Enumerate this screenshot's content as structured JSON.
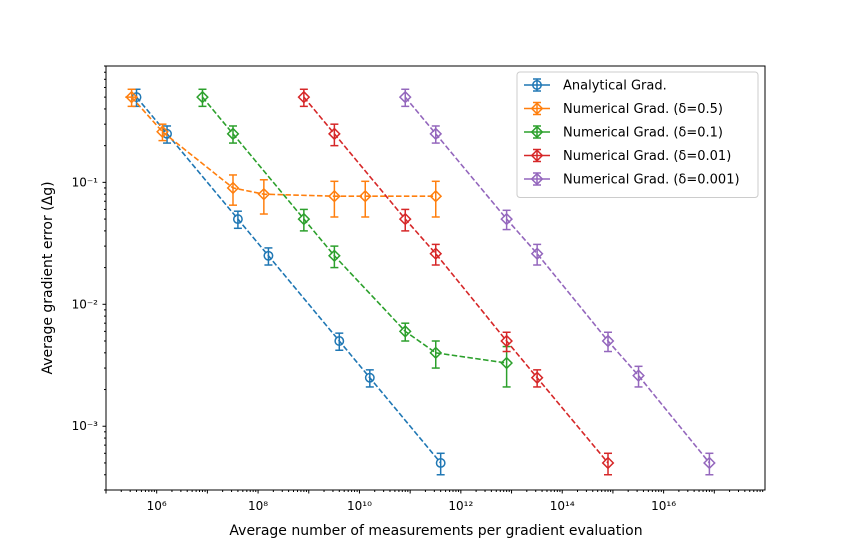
{
  "chart_data": {
    "type": "line",
    "xscale": "log",
    "yscale": "log",
    "xlabel": "Average number of measurements per gradient evaluation",
    "ylabel": "Average gradient error (Δg)",
    "xlim": [
      100000.0,
      1e+18
    ],
    "ylim": [
      0.0003,
      0.9
    ],
    "x_tick_labels": [
      "10^6",
      "10^8",
      "10^10",
      "10^12",
      "10^14",
      "10^16"
    ],
    "y_tick_labels": [
      "10^-3",
      "10^-2",
      "10^-1"
    ],
    "legend_position": "top-right",
    "series": [
      {
        "name": "Analytical Grad.",
        "color": "#1f77b4",
        "marker": "circle",
        "x": [
          400000.0,
          1600000.0,
          40000000.0,
          160000000.0,
          4000000000.0,
          16000000000.0,
          400000000000.0
        ],
        "y": [
          0.5,
          0.25,
          0.05,
          0.025,
          0.005,
          0.0025,
          0.0005
        ],
        "yerr": [
          0.08,
          0.04,
          0.008,
          0.004,
          0.0008,
          0.0004,
          0.0001
        ],
        "xerr": [
          0,
          0,
          0,
          0,
          0,
          0,
          0
        ]
      },
      {
        "name": "Numerical Grad. (δ=0.5)",
        "color": "#ff7f0e",
        "marker": "diamond",
        "x": [
          320000.0,
          1300000.0,
          32000000.0,
          130000000.0,
          3200000000.0,
          13000000000.0,
          320000000000.0
        ],
        "y": [
          0.5,
          0.26,
          0.09,
          0.08,
          0.077,
          0.077,
          0.077
        ],
        "yerr": [
          0.08,
          0.04,
          0.025,
          0.025,
          0.025,
          0.025,
          0.025
        ],
        "xerr": [
          80000.0,
          0,
          0,
          0,
          0,
          0,
          0
        ]
      },
      {
        "name": "Numerical Grad. (δ=0.1)",
        "color": "#2ca02c",
        "marker": "diamond",
        "x": [
          8000000.0,
          32000000.0,
          800000000.0,
          3200000000.0,
          80000000000.0,
          320000000000.0,
          8000000000000.0
        ],
        "y": [
          0.5,
          0.25,
          0.05,
          0.025,
          0.006,
          0.004,
          0.0033
        ],
        "yerr": [
          0.08,
          0.04,
          0.01,
          0.005,
          0.001,
          0.001,
          0.0012
        ],
        "xerr": [
          0,
          0,
          0,
          0,
          0,
          0,
          0
        ]
      },
      {
        "name": "Numerical Grad. (δ=0.01)",
        "color": "#d62728",
        "marker": "diamond",
        "x": [
          800000000.0,
          3200000000.0,
          80000000000.0,
          320000000000.0,
          8000000000000.0,
          32000000000000.0,
          800000000000000.0
        ],
        "y": [
          0.5,
          0.25,
          0.05,
          0.026,
          0.005,
          0.0025,
          0.0005
        ],
        "yerr": [
          0.08,
          0.05,
          0.01,
          0.005,
          0.0009,
          0.0004,
          0.0001
        ],
        "xerr": [
          0,
          0,
          0,
          0,
          0,
          0,
          0
        ]
      },
      {
        "name": "Numerical Grad. (δ=0.001)",
        "color": "#9467bd",
        "marker": "diamond",
        "x": [
          80000000000.0,
          320000000000.0,
          8000000000000.0,
          32000000000000.0,
          800000000000000.0,
          3200000000000000.0,
          8e+16
        ],
        "y": [
          0.5,
          0.25,
          0.05,
          0.026,
          0.005,
          0.0026,
          0.0005
        ],
        "yerr": [
          0.08,
          0.04,
          0.009,
          0.005,
          0.0009,
          0.0005,
          0.0001
        ],
        "xerr": [
          0,
          0,
          0,
          0,
          0,
          0,
          0
        ]
      }
    ]
  }
}
